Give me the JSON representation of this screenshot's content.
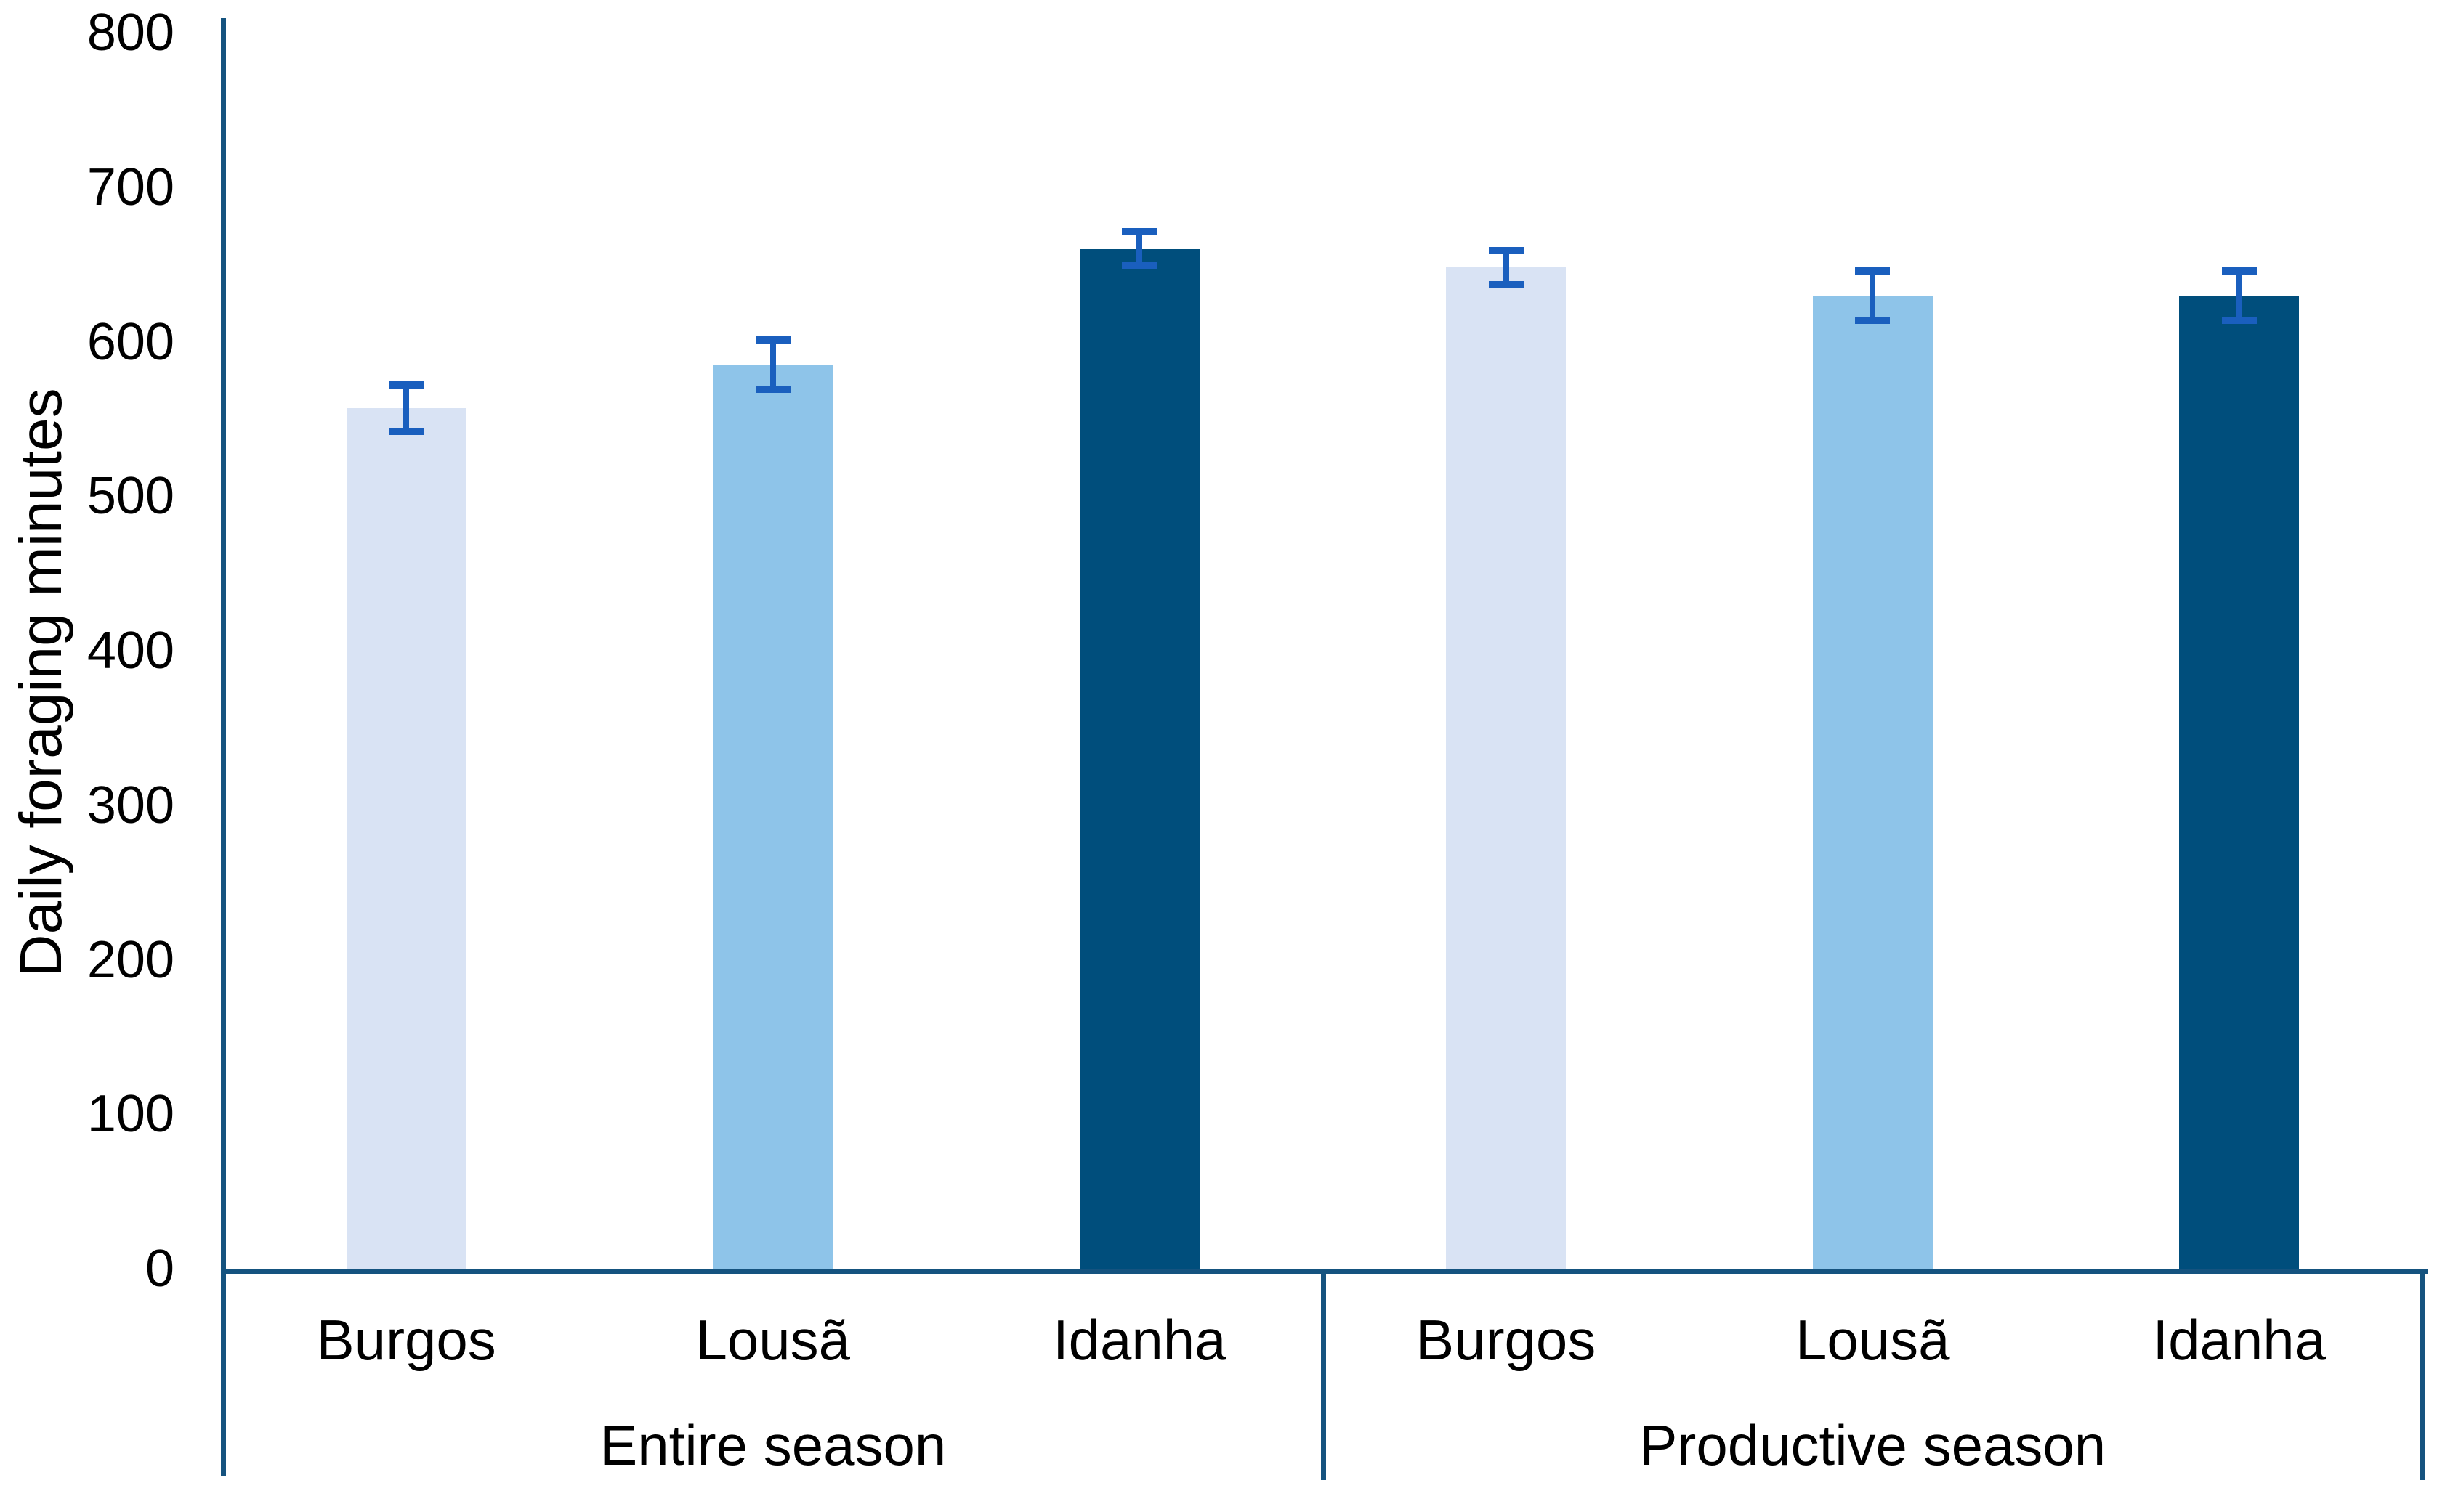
{
  "chart_data": {
    "type": "bar",
    "title": "",
    "ylabel": "Daily foraging minutes",
    "xlabel": "",
    "ylim": [
      0,
      800
    ],
    "yticks": [
      0,
      100,
      200,
      300,
      400,
      500,
      600,
      700,
      800
    ],
    "grid": false,
    "legend": false,
    "error_bars": true,
    "groups": [
      {
        "label": "Entire season",
        "categories": [
          "Burgos",
          "Lousã",
          "Idanha"
        ],
        "values": [
          557,
          585,
          660
        ],
        "errors": [
          15,
          16,
          11
        ]
      },
      {
        "label": "Productive season",
        "categories": [
          "Burgos",
          "Lousã",
          "Idanha"
        ],
        "values": [
          648,
          630,
          630
        ],
        "errors": [
          11,
          16,
          16
        ]
      }
    ],
    "bar_colors": [
      "#D9E3F4",
      "#8EC4E9",
      "#004E7C"
    ],
    "error_bar_color": "#1A5FBE",
    "axis_color": "#15537F",
    "text_color": "#000000"
  }
}
